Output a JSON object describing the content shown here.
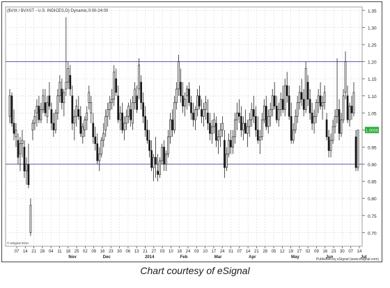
{
  "chart_data": {
    "type": "candlestick",
    "symbol_header": "($VIX / $VXST - U.S. INDICES,D) Dynamic,0:00-24:00",
    "corner_label": "© eSignal 2014",
    "credit": "Published by eSignal (www.esignal.com)",
    "last_value_label": "1.0000",
    "ylim": [
      0.66,
      1.36
    ],
    "yticks": [
      "1.35",
      "1.30",
      "1.25",
      "1.20",
      "1.15",
      "1.10",
      "1.05",
      "1.00",
      "0.95",
      "0.90",
      "0.85",
      "0.80",
      "0.75",
      "0.70"
    ],
    "reference_lines": [
      1.2,
      0.9
    ],
    "reference_line_color": "#5555aa",
    "day_ticks": [
      "07",
      "14",
      "21",
      "28",
      "04",
      "11",
      "18",
      "25",
      "02",
      "09",
      "16",
      "23",
      "30",
      "06",
      "13",
      "21",
      "27",
      "03",
      "10",
      "18",
      "24",
      "03",
      "10",
      "17",
      "24",
      "31",
      "07",
      "14",
      "21",
      "28",
      "05",
      "12",
      "19",
      "27",
      "02",
      "09",
      "16",
      "23",
      "30",
      "07",
      "14"
    ],
    "month_labels": [
      {
        "label": "Nov",
        "tick_index": 6
      },
      {
        "label": "Dec",
        "tick_index": 10
      },
      {
        "label": "2014",
        "tick_index": 15
      },
      {
        "label": "Feb",
        "tick_index": 19
      },
      {
        "label": "Mar",
        "tick_index": 23
      },
      {
        "label": "Apr",
        "tick_index": 27
      },
      {
        "label": "May",
        "tick_index": 32
      },
      {
        "label": "Jun",
        "tick_index": 36
      },
      {
        "label": "Jul",
        "tick_index": 40
      }
    ],
    "ohlc": [
      [
        1.04,
        1.12,
        1.02,
        1.1
      ],
      [
        1.1,
        1.11,
        1.01,
        1.02
      ],
      [
        1.02,
        1.06,
        0.97,
        0.99
      ],
      [
        0.98,
        1.02,
        0.95,
        1.0
      ],
      [
        0.97,
        0.99,
        0.9,
        0.92
      ],
      [
        0.93,
        0.98,
        0.88,
        0.96
      ],
      [
        0.96,
        1.0,
        0.92,
        0.97
      ],
      [
        0.95,
        0.97,
        0.86,
        0.88
      ],
      [
        0.88,
        0.92,
        0.84,
        0.9
      ],
      [
        0.9,
        0.96,
        0.83,
        0.84
      ],
      [
        0.7,
        0.8,
        0.69,
        0.78
      ],
      [
        1.0,
        1.03,
        0.97,
        1.02
      ],
      [
        1.02,
        1.06,
        1.0,
        1.04
      ],
      [
        1.05,
        1.09,
        1.01,
        1.07
      ],
      [
        1.07,
        1.1,
        1.02,
        1.03
      ],
      [
        1.03,
        1.08,
        1.02,
        1.06
      ],
      [
        1.06,
        1.12,
        1.05,
        1.1
      ],
      [
        1.08,
        1.12,
        1.04,
        1.05
      ],
      [
        1.04,
        1.1,
        1.02,
        1.08
      ],
      [
        1.1,
        1.14,
        1.06,
        1.07
      ],
      [
        1.06,
        1.08,
        1.0,
        1.02
      ],
      [
        1.02,
        1.05,
        0.98,
        1.0
      ],
      [
        1.0,
        1.06,
        0.99,
        1.05
      ],
      [
        1.05,
        1.12,
        1.03,
        1.1
      ],
      [
        1.1,
        1.16,
        1.08,
        1.14
      ],
      [
        1.12,
        1.15,
        1.06,
        1.08
      ],
      [
        1.08,
        1.12,
        1.04,
        1.11
      ],
      [
        1.12,
        1.33,
        1.1,
        1.14
      ],
      [
        1.14,
        1.2,
        1.12,
        1.18
      ],
      [
        1.16,
        1.19,
        1.1,
        1.12
      ],
      [
        1.1,
        1.13,
        1.0,
        1.02
      ],
      [
        1.02,
        1.06,
        0.97,
        1.04
      ],
      [
        1.04,
        1.09,
        1.01,
        1.07
      ],
      [
        1.06,
        1.1,
        1.03,
        1.04
      ],
      [
        1.04,
        1.07,
        0.98,
        0.99
      ],
      [
        0.98,
        1.02,
        0.96,
        1.01
      ],
      [
        1.0,
        1.04,
        0.98,
        1.03
      ],
      [
        1.03,
        1.07,
        1.0,
        1.05
      ],
      [
        1.08,
        1.13,
        1.06,
        1.11
      ],
      [
        1.05,
        1.1,
        1.02,
        1.08
      ],
      [
        1.02,
        1.05,
        0.96,
        0.98
      ],
      [
        0.98,
        1.01,
        0.94,
        0.96
      ],
      [
        0.96,
        0.99,
        0.9,
        0.91
      ],
      [
        0.91,
        0.95,
        0.88,
        0.93
      ],
      [
        0.93,
        0.98,
        0.92,
        0.97
      ],
      [
        0.97,
        1.02,
        0.95,
        0.99
      ],
      [
        1.0,
        1.06,
        0.98,
        1.04
      ],
      [
        1.04,
        1.08,
        1.01,
        1.06
      ],
      [
        1.06,
        1.1,
        1.03,
        1.08
      ],
      [
        1.08,
        1.12,
        1.06,
        1.09
      ],
      [
        1.09,
        1.19,
        1.07,
        1.17
      ],
      [
        1.15,
        1.18,
        1.1,
        1.11
      ],
      [
        1.1,
        1.13,
        1.02,
        1.03
      ],
      [
        1.03,
        1.07,
        1.0,
        1.05
      ],
      [
        1.05,
        1.08,
        0.99,
        1.0
      ],
      [
        1.0,
        1.04,
        0.97,
        1.02
      ],
      [
        1.02,
        1.06,
        1.0,
        1.04
      ],
      [
        1.04,
        1.08,
        1.02,
        1.07
      ],
      [
        1.06,
        1.09,
        1.01,
        1.03
      ],
      [
        1.02,
        1.1,
        1.0,
        1.08
      ],
      [
        1.08,
        1.14,
        1.06,
        1.12
      ],
      [
        1.1,
        1.13,
        1.05,
        1.06
      ],
      [
        1.12,
        1.21,
        1.09,
        1.19
      ],
      [
        1.14,
        1.16,
        1.06,
        1.08
      ],
      [
        1.08,
        1.11,
        1.02,
        1.04
      ],
      [
        1.04,
        1.07,
        0.98,
        1.0
      ],
      [
        1.0,
        1.03,
        0.96,
        0.97
      ],
      [
        0.97,
        1.0,
        0.92,
        0.94
      ],
      [
        0.94,
        0.97,
        0.88,
        0.89
      ],
      [
        0.89,
        0.93,
        0.85,
        0.92
      ],
      [
        0.92,
        0.98,
        0.86,
        0.9
      ],
      [
        0.88,
        0.93,
        0.85,
        0.87
      ],
      [
        0.87,
        0.92,
        0.86,
        0.91
      ],
      [
        0.91,
        0.96,
        0.9,
        0.95
      ],
      [
        0.95,
        0.97,
        0.88,
        0.9
      ],
      [
        0.9,
        0.94,
        0.88,
        0.93
      ],
      [
        0.93,
        1.0,
        0.92,
        0.98
      ],
      [
        0.98,
        1.05,
        0.96,
        1.03
      ],
      [
        1.03,
        1.06,
        0.98,
        1.0
      ],
      [
        1.0,
        1.1,
        0.99,
        1.08
      ],
      [
        1.08,
        1.14,
        1.06,
        1.12
      ],
      [
        1.12,
        1.22,
        1.1,
        1.2
      ],
      [
        1.14,
        1.18,
        1.08,
        1.1
      ],
      [
        1.1,
        1.14,
        1.05,
        1.07
      ],
      [
        1.07,
        1.11,
        1.04,
        1.09
      ],
      [
        1.1,
        1.13,
        1.06,
        1.12
      ],
      [
        1.12,
        1.14,
        1.07,
        1.08
      ],
      [
        1.08,
        1.1,
        1.03,
        1.05
      ],
      [
        1.05,
        1.08,
        1.01,
        1.03
      ],
      [
        1.03,
        1.07,
        1.0,
        1.06
      ],
      [
        1.06,
        1.12,
        1.04,
        1.1
      ],
      [
        1.1,
        1.13,
        1.06,
        1.07
      ],
      [
        1.06,
        1.09,
        1.02,
        1.04
      ],
      [
        1.04,
        1.08,
        1.01,
        1.06
      ],
      [
        1.06,
        1.1,
        1.03,
        1.08
      ],
      [
        1.05,
        1.09,
        1.0,
        1.02
      ],
      [
        1.02,
        1.05,
        0.97,
        0.99
      ],
      [
        0.99,
        1.03,
        0.96,
        1.01
      ],
      [
        1.01,
        1.05,
        0.99,
        1.03
      ],
      [
        1.02,
        1.04,
        0.95,
        0.97
      ],
      [
        0.97,
        1.0,
        0.93,
        0.98
      ],
      [
        0.98,
        1.02,
        0.95,
        1.0
      ],
      [
        1.0,
        1.04,
        0.98,
        1.02
      ],
      [
        0.97,
        1.0,
        0.86,
        0.89
      ],
      [
        0.89,
        0.95,
        0.88,
        0.93
      ],
      [
        0.93,
        0.99,
        0.92,
        0.97
      ],
      [
        0.97,
        1.0,
        0.93,
        0.95
      ],
      [
        0.95,
        1.0,
        0.93,
        0.98
      ],
      [
        0.98,
        1.05,
        0.96,
        1.03
      ],
      [
        1.03,
        1.08,
        1.0,
        1.05
      ],
      [
        1.05,
        1.09,
        1.02,
        1.04
      ],
      [
        1.04,
        1.07,
        0.98,
        1.0
      ],
      [
        1.0,
        1.04,
        0.97,
        1.02
      ],
      [
        1.02,
        1.06,
        0.99,
        0.99
      ],
      [
        0.99,
        1.03,
        0.95,
        1.01
      ],
      [
        1.01,
        1.05,
        0.98,
        1.03
      ],
      [
        1.03,
        1.08,
        1.01,
        1.06
      ],
      [
        1.06,
        1.1,
        1.02,
        1.04
      ],
      [
        1.04,
        1.07,
        0.98,
        1.0
      ],
      [
        1.0,
        1.04,
        0.96,
        0.97
      ],
      [
        0.97,
        1.0,
        0.93,
        0.98
      ],
      [
        0.98,
        1.05,
        0.97,
        1.03
      ],
      [
        1.03,
        1.09,
        1.02,
        1.07
      ],
      [
        1.07,
        1.1,
        1.0,
        1.01
      ],
      [
        1.01,
        1.06,
        0.99,
        1.04
      ],
      [
        1.04,
        1.08,
        1.01,
        1.06
      ],
      [
        1.06,
        1.12,
        1.04,
        1.1
      ],
      [
        1.1,
        1.14,
        1.06,
        1.07
      ],
      [
        1.07,
        1.1,
        1.02,
        1.03
      ],
      [
        1.03,
        1.08,
        1.01,
        1.06
      ],
      [
        1.06,
        1.11,
        1.04,
        1.09
      ],
      [
        1.09,
        1.13,
        1.05,
        1.06
      ],
      [
        1.06,
        1.15,
        1.04,
        1.13
      ],
      [
        1.13,
        1.17,
        1.08,
        1.1
      ],
      [
        1.1,
        1.13,
        1.03,
        1.04
      ],
      [
        1.04,
        1.08,
        0.96,
        0.97
      ],
      [
        0.97,
        1.02,
        0.96,
        1.0
      ],
      [
        1.0,
        1.06,
        0.99,
        1.04
      ],
      [
        1.04,
        1.1,
        1.02,
        1.08
      ],
      [
        1.08,
        1.13,
        1.06,
        1.11
      ],
      [
        1.11,
        1.15,
        1.07,
        1.09
      ],
      [
        1.09,
        1.12,
        1.04,
        1.06
      ],
      [
        1.06,
        1.2,
        1.05,
        1.18
      ],
      [
        1.14,
        1.16,
        1.07,
        1.09
      ],
      [
        1.09,
        1.12,
        1.03,
        1.05
      ],
      [
        1.05,
        1.08,
        1.0,
        1.02
      ],
      [
        1.02,
        1.06,
        0.99,
        1.04
      ],
      [
        1.04,
        1.09,
        1.02,
        1.08
      ],
      [
        1.08,
        1.12,
        1.05,
        1.1
      ],
      [
        1.1,
        1.14,
        1.06,
        1.07
      ],
      [
        1.07,
        1.1,
        1.03,
        1.08
      ],
      [
        1.08,
        1.13,
        1.06,
        1.11
      ],
      [
        1.03,
        1.05,
        0.97,
        0.98
      ],
      [
        0.98,
        1.0,
        0.92,
        0.94
      ],
      [
        0.94,
        0.99,
        0.92,
        0.97
      ],
      [
        0.97,
        1.03,
        0.96,
        1.01
      ],
      [
        1.01,
        1.06,
        0.99,
        1.04
      ],
      [
        1.04,
        1.21,
        1.02,
        1.06
      ],
      [
        1.06,
        1.09,
        0.97,
        0.99
      ],
      [
        0.99,
        1.05,
        0.98,
        1.03
      ],
      [
        1.03,
        1.12,
        1.02,
        1.1
      ],
      [
        1.11,
        1.23,
        1.09,
        1.2
      ],
      [
        1.1,
        1.13,
        1.02,
        1.03
      ],
      [
        1.03,
        1.08,
        1.01,
        1.07
      ],
      [
        1.07,
        1.1,
        1.03,
        1.05
      ],
      [
        1.05,
        1.14,
        1.04,
        1.11
      ],
      [
        0.98,
        1.0,
        0.88,
        0.89
      ],
      [
        0.89,
        1.0,
        0.88,
        1.0
      ]
    ]
  },
  "footer": {
    "caption": "Chart courtesy of eSignal"
  },
  "colors": {
    "up_fill": "#ffffff",
    "down_fill": "#111111",
    "candle_stroke": "#222222",
    "grid": "#d6d6d6",
    "last_value_box": "#22aa33"
  }
}
